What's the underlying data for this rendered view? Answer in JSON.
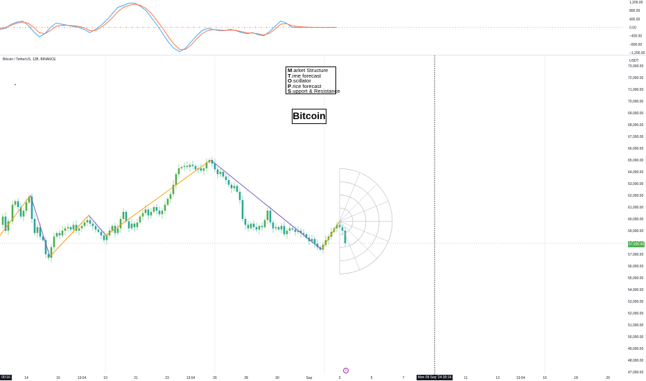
{
  "header": {
    "symbol": "Bitcoin / TetherUS, 12B, BINANCE",
    "currency": "USDT"
  },
  "legend": {
    "lines": [
      {
        "bold": "M",
        "rest": ".arket Structure"
      },
      {
        "bold": "T",
        "rest": ".ime forecast"
      },
      {
        "bold": "O",
        "rest": ".scillator"
      },
      {
        "bold": "P",
        "rest": ".rice forecast"
      },
      {
        "bold": "S",
        "rest": ".upport & Resistance"
      }
    ]
  },
  "title": "Bitcoin",
  "current_price": "57,935.99",
  "crosshair_time": "Mon 09 Sep '24  00:16",
  "left_time_tag": "00:16",
  "event_icon": "E",
  "colors": {
    "up": "#4caf50",
    "down": "#26a69a",
    "structure_up": "#ff9800",
    "structure_down": "#7e57c2",
    "osc_blue": "#42a5f5",
    "osc_orange": "#ff7043",
    "price_tag": "#4caf50",
    "fan": "#b2b5be",
    "crosshair": "#131722"
  },
  "chart_data": [
    {
      "type": "line",
      "name": "oscillator",
      "y_ticks": [
        "1,200.00",
        "800.00",
        "400.00",
        "0.00",
        "−400.00",
        "−800.00",
        "−1,200.00"
      ],
      "ylim": [
        -1200,
        1200
      ],
      "series": [
        {
          "color": "blue",
          "x": [
            0,
            1,
            2,
            3,
            4,
            5,
            6,
            7,
            8,
            9,
            10,
            11,
            12,
            13,
            14,
            15,
            16,
            17,
            18,
            19,
            20,
            21,
            22,
            23,
            24,
            25,
            26,
            27,
            28,
            29,
            30,
            31,
            32,
            33,
            34,
            35,
            36,
            37,
            38,
            39,
            40,
            41,
            42,
            43,
            44,
            45,
            46,
            47,
            48,
            49,
            50,
            51,
            52,
            53,
            54,
            55,
            56,
            57,
            58,
            59,
            60
          ],
          "values": [
            -100,
            -50,
            150,
            250,
            300,
            100,
            -200,
            -450,
            -300,
            0,
            200,
            150,
            100,
            50,
            0,
            -100,
            -250,
            -100,
            100,
            350,
            650,
            950,
            1050,
            1150,
            1150,
            1000,
            800,
            450,
            100,
            -300,
            -700,
            -1000,
            -1150,
            -1000,
            -700,
            -400,
            -150,
            -50,
            -100,
            -150,
            -150,
            -100,
            -150,
            -250,
            -300,
            -250,
            -350,
            -400,
            -200,
            50,
            300,
            200,
            0,
            0,
            0,
            0,
            0,
            0,
            0,
            0,
            0
          ]
        },
        {
          "color": "orange",
          "x": [
            0,
            1,
            2,
            3,
            4,
            5,
            6,
            7,
            8,
            9,
            10,
            11,
            12,
            13,
            14,
            15,
            16,
            17,
            18,
            19,
            20,
            21,
            22,
            23,
            24,
            25,
            26,
            27,
            28,
            29,
            30,
            31,
            32,
            33,
            34,
            35,
            36,
            37,
            38,
            39,
            40,
            41,
            42,
            43,
            44,
            45,
            46,
            47,
            48,
            49,
            50,
            51,
            52,
            53,
            54,
            55,
            56,
            57,
            58,
            59,
            60
          ],
          "values": [
            -50,
            0,
            100,
            200,
            250,
            200,
            0,
            -250,
            -300,
            -150,
            50,
            100,
            100,
            80,
            50,
            -20,
            -150,
            -150,
            0,
            200,
            450,
            750,
            950,
            1050,
            1100,
            1050,
            900,
            650,
            300,
            -50,
            -450,
            -800,
            -1050,
            -1050,
            -850,
            -550,
            -300,
            -150,
            -100,
            -120,
            -140,
            -130,
            -140,
            -200,
            -260,
            -270,
            -310,
            -360,
            -280,
            -80,
            150,
            180,
            80,
            40,
            20,
            10,
            0,
            0,
            0,
            0,
            0
          ]
        }
      ]
    },
    {
      "type": "candlestick",
      "name": "price",
      "ylabel": "USDT",
      "y_ticks": [
        "73,000.00",
        "72,000.00",
        "71,000.00",
        "70,000.00",
        "69,000.00",
        "68,000.00",
        "67,000.00",
        "66,000.00",
        "65,000.00",
        "64,000.00",
        "63,000.00",
        "62,000.00",
        "61,000.00",
        "60,000.00",
        "59,000.00",
        "58,000.00",
        "57,000.00",
        "56,000.00",
        "55,000.00",
        "54,000.00",
        "53,000.00",
        "52,000.00",
        "51,000.00",
        "50,000.00",
        "49,000.00",
        "48,000.00",
        "47,000.00"
      ],
      "ylim": [
        47000,
        73000
      ],
      "x_ticks": [
        {
          "label": "14",
          "x": 38
        },
        {
          "label": "16",
          "x": 84
        },
        {
          "label": "13:04",
          "x": 118
        },
        {
          "label": "19",
          "x": 152
        },
        {
          "label": "21",
          "x": 196
        },
        {
          "label": "23",
          "x": 241
        },
        {
          "label": "13:04",
          "x": 275
        },
        {
          "label": "26",
          "x": 310
        },
        {
          "label": "28",
          "x": 355
        },
        {
          "label": "30",
          "x": 400
        },
        {
          "label": "Sep",
          "x": 446
        },
        {
          "label": "3",
          "x": 490
        },
        {
          "label": "5",
          "x": 536
        },
        {
          "label": "7",
          "x": 582
        },
        {
          "label": "11",
          "x": 672
        },
        {
          "label": "13",
          "x": 718
        },
        {
          "label": "13:04",
          "x": 751
        },
        {
          "label": "16",
          "x": 786
        },
        {
          "label": "18",
          "x": 831
        },
        {
          "label": "20",
          "x": 877
        }
      ],
      "close_path": [
        {
          "t": 0,
          "p": 59500
        },
        {
          "t": 4,
          "p": 60200
        },
        {
          "t": 8,
          "p": 59000
        },
        {
          "t": 12,
          "p": 59800
        },
        {
          "t": 18,
          "p": 61200
        },
        {
          "t": 22,
          "p": 61500
        },
        {
          "t": 26,
          "p": 61000
        },
        {
          "t": 30,
          "p": 60200
        },
        {
          "t": 34,
          "p": 60700
        },
        {
          "t": 38,
          "p": 61400
        },
        {
          "t": 42,
          "p": 61900
        },
        {
          "t": 46,
          "p": 60000
        },
        {
          "t": 50,
          "p": 58800
        },
        {
          "t": 54,
          "p": 59300
        },
        {
          "t": 58,
          "p": 58500
        },
        {
          "t": 62,
          "p": 58200
        },
        {
          "t": 66,
          "p": 57000
        },
        {
          "t": 70,
          "p": 56700
        },
        {
          "t": 74,
          "p": 57600
        },
        {
          "t": 78,
          "p": 58500
        },
        {
          "t": 82,
          "p": 58800
        },
        {
          "t": 86,
          "p": 58600
        },
        {
          "t": 90,
          "p": 59000
        },
        {
          "t": 94,
          "p": 59200
        },
        {
          "t": 98,
          "p": 59300
        },
        {
          "t": 102,
          "p": 59100
        },
        {
          "t": 106,
          "p": 59500
        },
        {
          "t": 110,
          "p": 59000
        },
        {
          "t": 114,
          "p": 59200
        },
        {
          "t": 118,
          "p": 59400
        },
        {
          "t": 122,
          "p": 59700
        },
        {
          "t": 126,
          "p": 59900
        },
        {
          "t": 130,
          "p": 59600
        },
        {
          "t": 134,
          "p": 59400
        },
        {
          "t": 138,
          "p": 59100
        },
        {
          "t": 142,
          "p": 58900
        },
        {
          "t": 146,
          "p": 58600
        },
        {
          "t": 150,
          "p": 58200
        },
        {
          "t": 154,
          "p": 58600
        },
        {
          "t": 158,
          "p": 59000
        },
        {
          "t": 162,
          "p": 59400
        },
        {
          "t": 166,
          "p": 58800
        },
        {
          "t": 170,
          "p": 59200
        },
        {
          "t": 174,
          "p": 60000
        },
        {
          "t": 178,
          "p": 60600
        },
        {
          "t": 182,
          "p": 59800
        },
        {
          "t": 186,
          "p": 59200
        },
        {
          "t": 190,
          "p": 59600
        },
        {
          "t": 194,
          "p": 59300
        },
        {
          "t": 198,
          "p": 59700
        },
        {
          "t": 202,
          "p": 60200
        },
        {
          "t": 206,
          "p": 60500
        },
        {
          "t": 210,
          "p": 60800
        },
        {
          "t": 214,
          "p": 60300
        },
        {
          "t": 218,
          "p": 60600
        },
        {
          "t": 222,
          "p": 61000
        },
        {
          "t": 226,
          "p": 60700
        },
        {
          "t": 230,
          "p": 60400
        },
        {
          "t": 234,
          "p": 60700
        },
        {
          "t": 238,
          "p": 61200
        },
        {
          "t": 242,
          "p": 61700
        },
        {
          "t": 246,
          "p": 62100
        },
        {
          "t": 250,
          "p": 62900
        },
        {
          "t": 254,
          "p": 63800
        },
        {
          "t": 258,
          "p": 64300
        },
        {
          "t": 262,
          "p": 64400
        },
        {
          "t": 266,
          "p": 64500
        },
        {
          "t": 270,
          "p": 64400
        },
        {
          "t": 274,
          "p": 64600
        },
        {
          "t": 278,
          "p": 64500
        },
        {
          "t": 282,
          "p": 64200
        },
        {
          "t": 286,
          "p": 64300
        },
        {
          "t": 290,
          "p": 64100
        },
        {
          "t": 294,
          "p": 64300
        },
        {
          "t": 298,
          "p": 64800
        },
        {
          "t": 302,
          "p": 65000
        },
        {
          "t": 306,
          "p": 64700
        },
        {
          "t": 310,
          "p": 64200
        },
        {
          "t": 314,
          "p": 63800
        },
        {
          "t": 318,
          "p": 64000
        },
        {
          "t": 322,
          "p": 63600
        },
        {
          "t": 326,
          "p": 63300
        },
        {
          "t": 330,
          "p": 62900
        },
        {
          "t": 334,
          "p": 62600
        },
        {
          "t": 338,
          "p": 62800
        },
        {
          "t": 342,
          "p": 62300
        },
        {
          "t": 346,
          "p": 61600
        },
        {
          "t": 350,
          "p": 60000
        },
        {
          "t": 354,
          "p": 59500
        },
        {
          "t": 358,
          "p": 59200
        },
        {
          "t": 362,
          "p": 59600
        },
        {
          "t": 366,
          "p": 59300
        },
        {
          "t": 370,
          "p": 59100
        },
        {
          "t": 374,
          "p": 59400
        },
        {
          "t": 378,
          "p": 59300
        },
        {
          "t": 382,
          "p": 59900
        },
        {
          "t": 386,
          "p": 60700
        },
        {
          "t": 390,
          "p": 59700
        },
        {
          "t": 394,
          "p": 59200
        },
        {
          "t": 398,
          "p": 59300
        },
        {
          "t": 402,
          "p": 59100
        },
        {
          "t": 406,
          "p": 59400
        },
        {
          "t": 410,
          "p": 58700
        },
        {
          "t": 414,
          "p": 59000
        },
        {
          "t": 418,
          "p": 59200
        },
        {
          "t": 422,
          "p": 59100
        },
        {
          "t": 426,
          "p": 58900
        },
        {
          "t": 430,
          "p": 59000
        },
        {
          "t": 434,
          "p": 58800
        },
        {
          "t": 438,
          "p": 58700
        },
        {
          "t": 442,
          "p": 58400
        },
        {
          "t": 446,
          "p": 58100
        },
        {
          "t": 450,
          "p": 58300
        },
        {
          "t": 454,
          "p": 57900
        },
        {
          "t": 458,
          "p": 57600
        },
        {
          "t": 462,
          "p": 57400
        },
        {
          "t": 466,
          "p": 57800
        },
        {
          "t": 470,
          "p": 58200
        },
        {
          "t": 474,
          "p": 58500
        },
        {
          "t": 478,
          "p": 58900
        },
        {
          "t": 482,
          "p": 59200
        },
        {
          "t": 486,
          "p": 59500
        },
        {
          "t": 490,
          "p": 59300
        },
        {
          "t": 494,
          "p": 59000
        },
        {
          "t": 498,
          "p": 57936
        }
      ],
      "structure_lines": [
        {
          "color": "orange",
          "points": [
            [
              0,
              58600
            ],
            [
              44,
              62000
            ]
          ]
        },
        {
          "color": "purple",
          "points": [
            [
              44,
              62000
            ],
            [
              72,
              56800
            ]
          ]
        },
        {
          "color": "orange",
          "points": [
            [
              72,
              56800
            ],
            [
              128,
              60300
            ]
          ]
        },
        {
          "color": "purple",
          "points": [
            [
              128,
              60300
            ],
            [
              153,
              58600
            ]
          ]
        },
        {
          "color": "orange",
          "points": [
            [
              153,
              58600
            ],
            [
              304,
              65000
            ]
          ]
        },
        {
          "color": "purple",
          "points": [
            [
              304,
              65000
            ],
            [
              464,
              57400
            ]
          ]
        },
        {
          "color": "orange",
          "points": [
            [
              464,
              57400
            ],
            [
              490,
              59800
            ]
          ]
        }
      ],
      "current_price": 57935.99,
      "forecast_fan": {
        "origin_t": 490,
        "origin_p": 59800,
        "arcs": 4
      }
    }
  ]
}
